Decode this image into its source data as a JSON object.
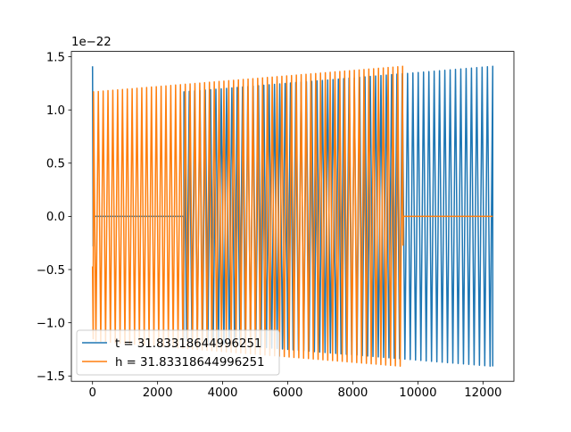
{
  "chart_data": {
    "type": "line",
    "title": "",
    "xlabel": "",
    "ylabel": "",
    "offset_text": "1e−22",
    "xlim": [
      -650,
      12950
    ],
    "ylim": [
      -1.55,
      1.55
    ],
    "y_scale_exponent": -22,
    "xticks": [
      0,
      2000,
      4000,
      6000,
      8000,
      10000,
      12000
    ],
    "xtick_labels": [
      "0",
      "2000",
      "4000",
      "6000",
      "8000",
      "10000",
      "12000"
    ],
    "yticks": [
      -1.5,
      -1.0,
      -0.5,
      0.0,
      0.5,
      1.0,
      1.5
    ],
    "ytick_labels": [
      "−1.5",
      "−1.0",
      "−0.5",
      "0.0",
      "0.5",
      "1.0",
      "1.5"
    ],
    "grid": false,
    "legend_position": "lower-left",
    "series": [
      {
        "name": "t = 31.83318644996251",
        "color": "#1f77b4",
        "style": "chirp",
        "points": [
          {
            "x": 0,
            "y": 1.41
          },
          {
            "x": 20,
            "y": -0.28
          },
          {
            "x": 20,
            "y": 0.0
          },
          {
            "x": 2800,
            "y": 0.0
          },
          {
            "x": 2800,
            "y": -1.15
          },
          {
            "x": 2810,
            "y": 1.17
          },
          {
            "x": 12300,
            "y": 1.41
          }
        ],
        "cycles_in_oscillating_span": 58
      },
      {
        "name": "h = 31.83318644996251",
        "color": "#ff7f0e",
        "style": "chirp",
        "points": [
          {
            "x": 0,
            "y": -0.47
          },
          {
            "x": 20,
            "y": -1.15
          },
          {
            "x": 30,
            "y": 1.17
          },
          {
            "x": 9530,
            "y": 1.41
          },
          {
            "x": 9540,
            "y": -0.27
          },
          {
            "x": 9550,
            "y": 0.0
          },
          {
            "x": 12300,
            "y": 0.0
          }
        ],
        "cycles_in_oscillating_span": 64
      }
    ]
  }
}
